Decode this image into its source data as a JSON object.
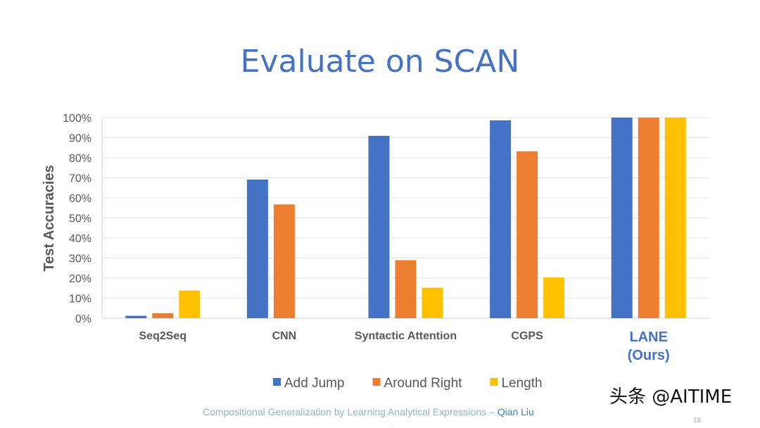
{
  "slide": {
    "title": "Evaluate on SCAN",
    "footer_text": "Compositional Generalization by Learning Analytical Expressions – ",
    "footer_author": "Qian Liu",
    "page_number": "18",
    "watermark": "头条 @AITIME"
  },
  "chart_data": {
    "type": "bar",
    "title": "",
    "xlabel": "",
    "ylabel": "Test Accuracies",
    "ylim": [
      0,
      100
    ],
    "yticks": [
      "0%",
      "10%",
      "20%",
      "30%",
      "40%",
      "50%",
      "60%",
      "70%",
      "80%",
      "90%",
      "100%"
    ],
    "grid": true,
    "legend_position": "bottom",
    "categories": [
      "Seq2Seq",
      "CNN",
      "Syntactic Attention",
      "CGPS",
      "LANE\n(Ours)"
    ],
    "highlight_category": "LANE\n(Ours)",
    "highlight_color": "#4472c4",
    "series": [
      {
        "name": "Add Jump",
        "color": "#4472c4",
        "values": [
          1.2,
          69.1,
          90.9,
          98.6,
          100
        ]
      },
      {
        "name": "Around Right",
        "color": "#ed7d31",
        "values": [
          2.5,
          56.7,
          28.9,
          83.2,
          100
        ]
      },
      {
        "name": "Length",
        "color": "#ffc000",
        "values": [
          13.8,
          0,
          15.2,
          20.3,
          100
        ]
      }
    ]
  }
}
